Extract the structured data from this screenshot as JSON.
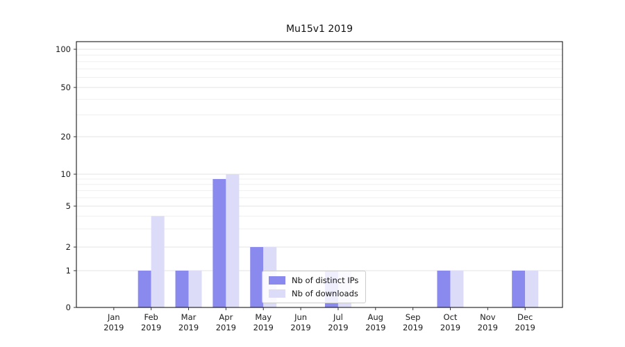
{
  "chart_data": {
    "type": "bar",
    "title": "Mu15v1 2019",
    "categories": [
      "Jan",
      "Feb",
      "Mar",
      "Apr",
      "May",
      "Jun",
      "Jul",
      "Aug",
      "Sep",
      "Oct",
      "Nov",
      "Dec"
    ],
    "category_year": "2019",
    "series": [
      {
        "name": "Nb of distinct IPs",
        "color": "#8a8aee",
        "values": [
          0,
          1,
          1,
          9,
          2,
          0,
          1,
          0,
          0,
          1,
          0,
          1
        ]
      },
      {
        "name": "Nb of downloads",
        "color": "#dcdcf8",
        "values": [
          0,
          4,
          1,
          10,
          2,
          0,
          1,
          0,
          0,
          1,
          0,
          1
        ]
      }
    ],
    "yscale": "symlog",
    "yticks": [
      0,
      1,
      2,
      5,
      10,
      20,
      50,
      100
    ],
    "minor_yticks": [
      3,
      4,
      6,
      7,
      8,
      9,
      30,
      40,
      60,
      70,
      80,
      90
    ],
    "ylim": [
      0,
      115
    ],
    "grid": true,
    "legend_position": "lower center"
  }
}
